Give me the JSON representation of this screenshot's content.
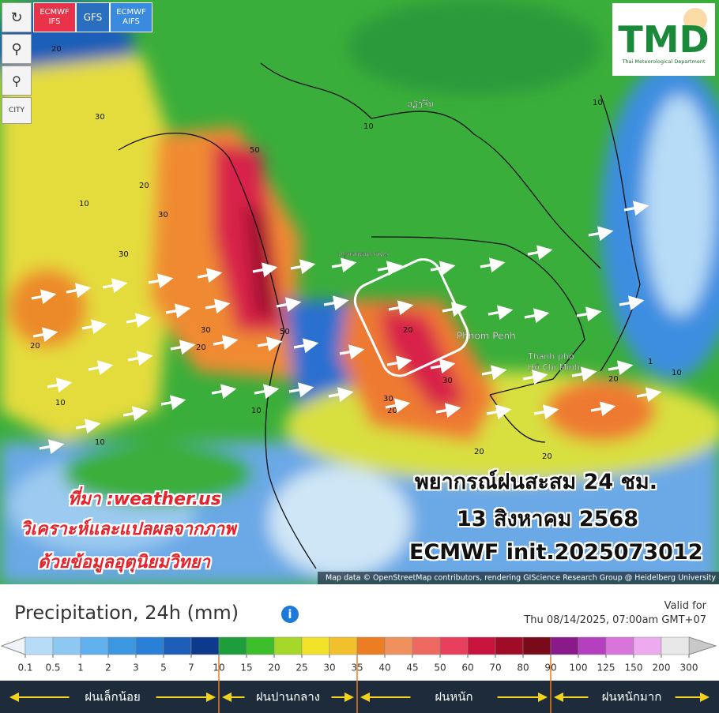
{
  "toolbar": {
    "models": [
      [
        "ECMWF",
        "IFS"
      ],
      [
        "GFS"
      ],
      [
        "ECMWF",
        "AIFS"
      ]
    ],
    "city": "CITY"
  },
  "logo": {
    "text": "TMD",
    "caption": "Thai Meteorological Department"
  },
  "overlay": {
    "source": "ที่มา :weather.us",
    "analysis": "วิเคราะห์และแปลผลจากภาพ",
    "data": "ด้วยข้อมูลอุตุนิยมวิทยา",
    "forecast": "พยากรณ์ฝนสะสม 24 ชม.",
    "date": "13 สิงหาคม 2568",
    "init": "ECMWF init.2025073012"
  },
  "places": [
    "ວຽງຈັນ",
    "กรุงเทพมหานคร",
    "Phnom Penh",
    "Thành phố",
    "Hồ Chí Minh"
  ],
  "contours": [
    20,
    30,
    10,
    20,
    30,
    30,
    50,
    20,
    30,
    10,
    50,
    20,
    30,
    10,
    20,
    10,
    10,
    20,
    20,
    1,
    10,
    20,
    30,
    20,
    10
  ],
  "attribution": "Map data © OpenStreetMap contributors, rendering GIScience Research Group @ Heidelberg University",
  "legend": {
    "title": "Precipitation, 24h (mm)",
    "valid_label": "Valid for",
    "valid_time": "Thu 08/14/2025, 07:00am GMT+07",
    "ticks": [
      0.1,
      0.5,
      1,
      2,
      3,
      5,
      7,
      10,
      15,
      20,
      25,
      30,
      35,
      40,
      45,
      50,
      60,
      70,
      80,
      90,
      100,
      125,
      150,
      200,
      300
    ],
    "colors": [
      "#b7dcf7",
      "#8cc8f2",
      "#5fb0ec",
      "#3c97e3",
      "#2a7fd6",
      "#1d5fb8",
      "#0d3a8c",
      "#1e9e3a",
      "#3cbf2a",
      "#a6d82a",
      "#f2e22a",
      "#f2c02a",
      "#ec7d22",
      "#f0905a",
      "#ee6a60",
      "#e8405c",
      "#c8143c",
      "#a00c28",
      "#780a1a",
      "#8a1a8a",
      "#b440c0",
      "#d874dc",
      "#eeaaee",
      "#e8e8e8"
    ],
    "end_colors": [
      "#eef4fa",
      "#c8c8c8"
    ],
    "dividers": [
      10,
      35,
      90
    ],
    "categories": [
      "ฝนเล็กน้อย",
      "ฝนปานกลาง",
      "ฝนหนัก",
      "ฝนหนักมาก"
    ]
  }
}
